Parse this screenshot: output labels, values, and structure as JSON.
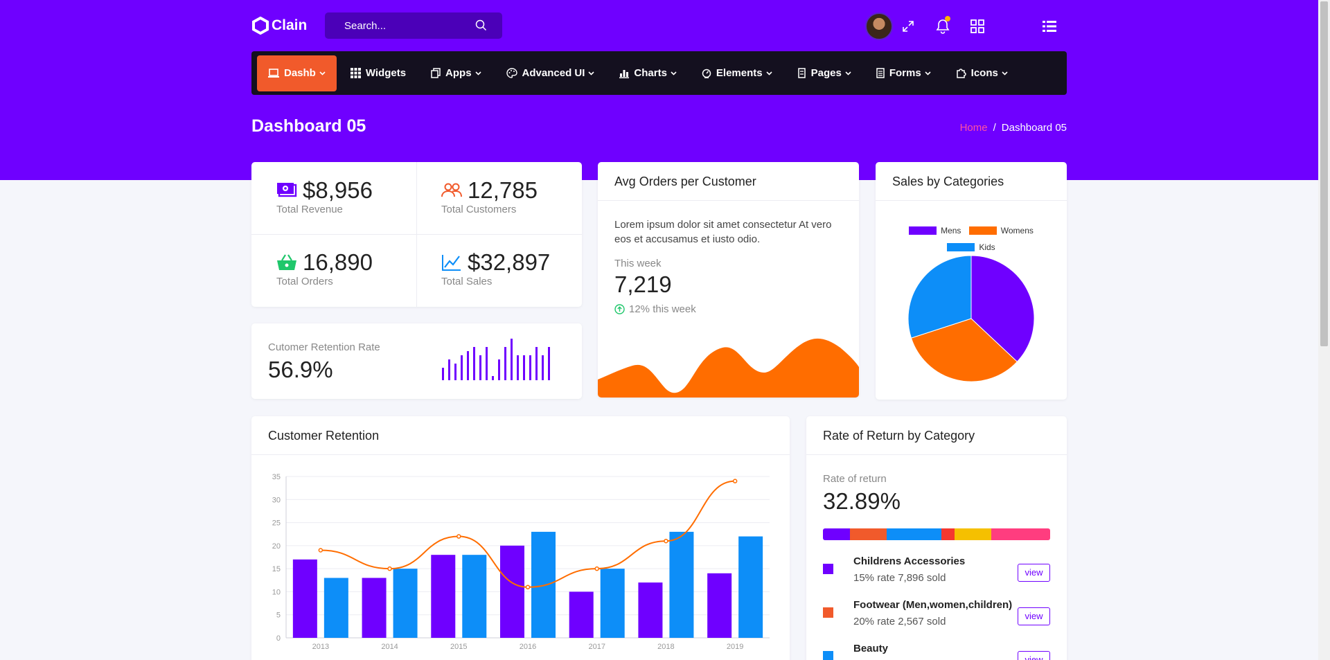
{
  "app": {
    "brand": "Clain"
  },
  "search": {
    "placeholder": "Search..."
  },
  "nav": {
    "items": [
      {
        "label": "Dashb"
      },
      {
        "label": "Widgets"
      },
      {
        "label": "Apps"
      },
      {
        "label": "Advanced UI"
      },
      {
        "label": "Charts"
      },
      {
        "label": "Elements"
      },
      {
        "label": "Pages"
      },
      {
        "label": "Forms"
      },
      {
        "label": "Icons"
      }
    ]
  },
  "page": {
    "title": "Dashboard 05",
    "breadcrumb_home": "Home",
    "breadcrumb_sep": "/",
    "breadcrumb_current": "Dashboard 05"
  },
  "stats": [
    {
      "value": "$8,956",
      "label": "Total Revenue",
      "icon": "money-icon",
      "color": "#6f00ff"
    },
    {
      "value": "12,785",
      "label": "Total Customers",
      "icon": "users-icon",
      "color": "#f15a2b"
    },
    {
      "value": "16,890",
      "label": "Total Orders",
      "icon": "basket-icon",
      "color": "#1fc76b"
    },
    {
      "value": "$32,897",
      "label": "Total Sales",
      "icon": "line-chart-icon",
      "color": "#0d8ef8"
    }
  ],
  "retention_rate": {
    "label": "Cutomer Retention Rate",
    "value": "56.9%",
    "sparkline": [
      3,
      5,
      4,
      6,
      7,
      8,
      6,
      8,
      1,
      5,
      8,
      10,
      6,
      6,
      6,
      8,
      6,
      8
    ]
  },
  "avg_orders": {
    "title": "Avg Orders per Customer",
    "description": "Lorem ipsum dolor sit amet consectetur At vero eos et accusamus et iusto odio.",
    "week_label": "This week",
    "week_value": "7,219",
    "delta": "12% this week",
    "area_color": "#ff6d00"
  },
  "sales_by_categories": {
    "title": "Sales by Categories",
    "legend": [
      {
        "name": "Mens",
        "color": "#6f00ff"
      },
      {
        "name": "Womens",
        "color": "#ff6d00"
      },
      {
        "name": "Kids",
        "color": "#0d8ef8"
      }
    ],
    "values": [
      37,
      33,
      30
    ]
  },
  "customer_retention": {
    "title": "Customer Retention"
  },
  "chart_data": {
    "type": "bar",
    "categories": [
      "2013",
      "2014",
      "2015",
      "2016",
      "2017",
      "2018",
      "2019"
    ],
    "series": [
      {
        "type": "bar",
        "values": [
          17,
          13,
          18,
          20,
          10,
          12,
          14
        ],
        "color": "#6f00ff"
      },
      {
        "type": "bar",
        "values": [
          13,
          15,
          18,
          23,
          15,
          23,
          22
        ],
        "color": "#0d8ef8"
      },
      {
        "type": "line",
        "values": [
          19,
          15,
          22,
          11,
          15,
          21,
          34
        ],
        "color": "#ff6d00"
      }
    ],
    "ylim": [
      0,
      35
    ],
    "yticks": [
      0,
      5,
      10,
      15,
      20,
      25,
      30,
      35
    ],
    "grid": true
  },
  "rate_of_return": {
    "title": "Rate of Return by Category",
    "label": "Rate of return",
    "value": "32.89%",
    "segments": [
      {
        "share": 12,
        "color": "#6f00ff"
      },
      {
        "share": 16,
        "color": "#f15a2b"
      },
      {
        "share": 24,
        "color": "#0d8ef8"
      },
      {
        "share": 6,
        "color": "#f5382f"
      },
      {
        "share": 16,
        "color": "#f5c000"
      },
      {
        "share": 26,
        "color": "#ff3d7f"
      }
    ],
    "items": [
      {
        "name": "Childrens Accessories",
        "sub": "15% rate 7,896 sold",
        "color": "#6f00ff",
        "button": "view"
      },
      {
        "name": "Footwear (Men,women,children)",
        "sub": "20% rate 2,567 sold",
        "color": "#f15a2b",
        "button": "view"
      },
      {
        "name": "Beauty",
        "sub": "",
        "color": "#0d8ef8",
        "button": "view"
      }
    ]
  }
}
